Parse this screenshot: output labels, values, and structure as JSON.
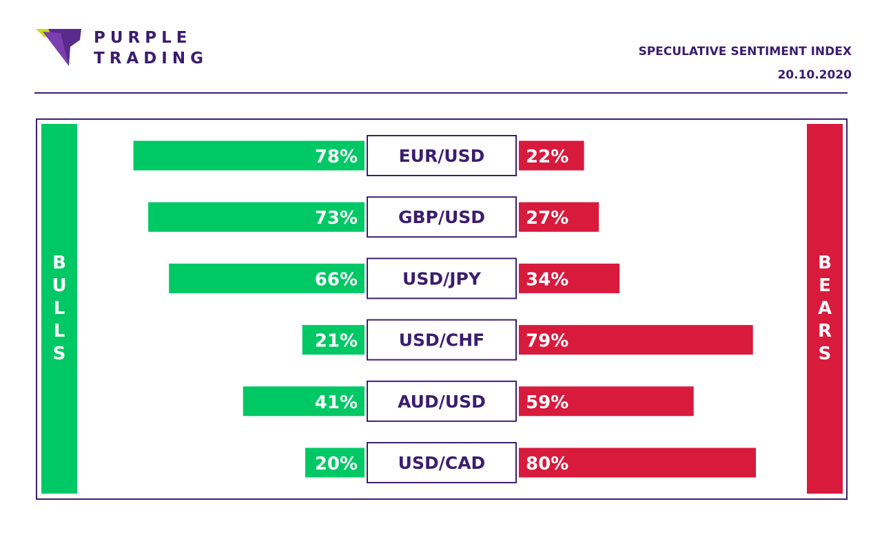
{
  "brand": {
    "line1": "PURPLE",
    "line2": "TRADING"
  },
  "header": {
    "title": "SPECULATIVE SENTIMENT INDEX",
    "date": "20.10.2020"
  },
  "colors": {
    "brand_purple": "#3b1d6e",
    "bulls_green": "#00c865",
    "bears_red": "#d81a3d",
    "logo_lime": "#c7dc1e"
  },
  "side_labels": {
    "bulls": "BULLS",
    "bears": "BEARS"
  },
  "chart_data": {
    "type": "bar",
    "orientation": "horizontal-diverging",
    "categories": [
      "EUR/USD",
      "GBP/USD",
      "USD/JPY",
      "USD/CHF",
      "AUD/USD",
      "USD/CAD"
    ],
    "series": [
      {
        "name": "BULLS",
        "values": [
          78,
          73,
          66,
          21,
          41,
          20
        ],
        "labels": [
          "78%",
          "73%",
          "66%",
          "21%",
          "41%",
          "20%"
        ]
      },
      {
        "name": "BEARS",
        "values": [
          22,
          27,
          34,
          79,
          59,
          80
        ],
        "labels": [
          "22%",
          "27%",
          "34%",
          "79%",
          "59%",
          "80%"
        ]
      }
    ],
    "unit": "%",
    "xlim": [
      0,
      100
    ]
  }
}
